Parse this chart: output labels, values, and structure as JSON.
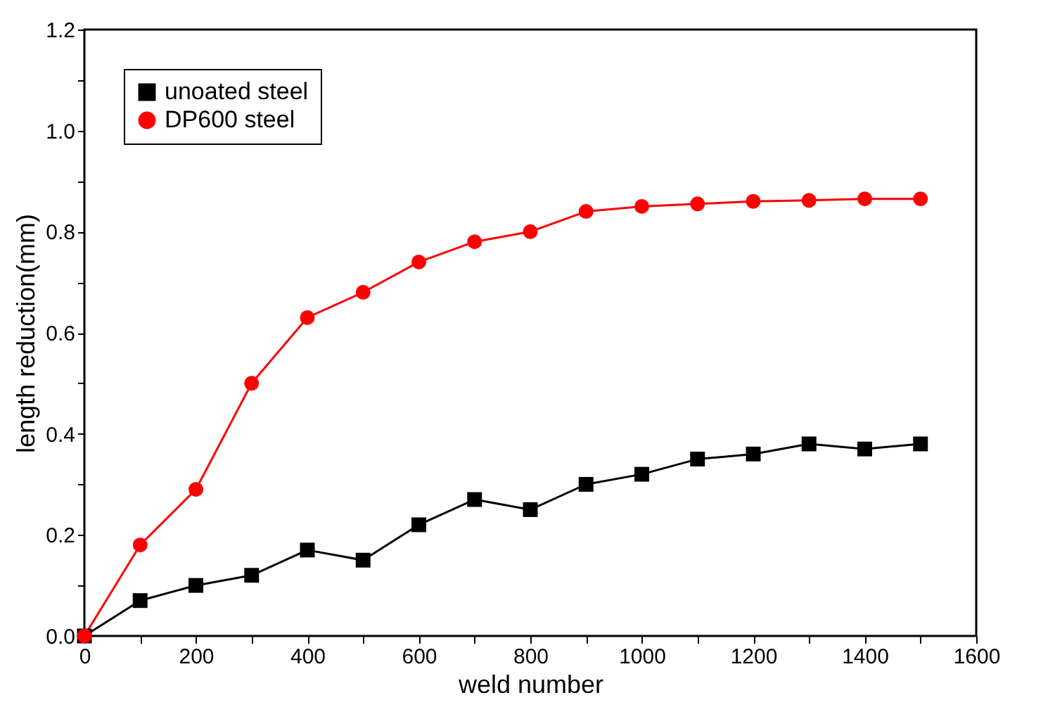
{
  "chart_data": {
    "type": "line",
    "xlabel": "weld number",
    "ylabel": "length reduction(mm)",
    "x": [
      0,
      100,
      200,
      300,
      400,
      500,
      600,
      700,
      800,
      900,
      1000,
      1100,
      1200,
      1300,
      1400,
      1500
    ],
    "series": [
      {
        "name": "unoated steel",
        "color": "#000000",
        "marker": "square",
        "values": [
          0,
          0.07,
          0.1,
          0.12,
          0.17,
          0.15,
          0.22,
          0.27,
          0.25,
          0.3,
          0.32,
          0.35,
          0.36,
          0.38,
          0.37,
          0.38
        ]
      },
      {
        "name": "DP600 steel",
        "color": "#ff0000",
        "marker": "circle",
        "values": [
          0,
          0.18,
          0.29,
          0.5,
          0.63,
          0.68,
          0.74,
          0.78,
          0.8,
          0.84,
          0.85,
          0.855,
          0.86,
          0.862,
          0.865,
          0.865
        ]
      }
    ],
    "xlim": [
      0,
      1600
    ],
    "xticks": [
      0,
      {
        "value": 100,
        "label": null
      },
      200,
      {
        "value": 300,
        "label": null
      },
      400,
      {
        "value": 500,
        "label": null
      },
      600,
      {
        "value": 700,
        "label": null
      },
      800,
      {
        "value": 900,
        "label": null
      },
      1000,
      {
        "value": 1100,
        "label": null
      },
      1200,
      {
        "value": 1300,
        "label": null
      },
      1400,
      {
        "value": 1500,
        "label": null
      },
      1600
    ],
    "ylim": [
      0,
      1.2
    ],
    "yticks": [
      {
        "value": 0,
        "label": "0.0"
      },
      {
        "value": 0.1,
        "label": null
      },
      {
        "value": 0.2,
        "label": "0.2"
      },
      {
        "value": 0.3,
        "label": null
      },
      {
        "value": 0.4,
        "label": "0.4"
      },
      {
        "value": 0.5,
        "label": null
      },
      {
        "value": 0.6,
        "label": "0.6"
      },
      {
        "value": 0.7,
        "label": null
      },
      {
        "value": 0.8,
        "label": "0.8"
      },
      {
        "value": 0.9,
        "label": null
      },
      {
        "value": 1.0,
        "label": "1.0"
      },
      {
        "value": 1.1,
        "label": null
      },
      {
        "value": 1.2,
        "label": "1.2"
      }
    ],
    "grid": false,
    "legend": "top left",
    "line_style": "solid"
  }
}
